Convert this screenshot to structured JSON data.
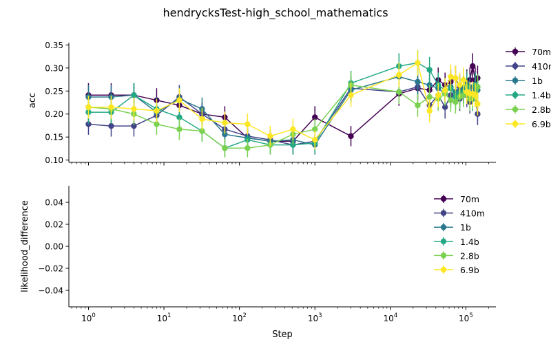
{
  "chart_data": {
    "type": "line",
    "title": "hendrycksTest-high_school_mathematics",
    "xlabel": "Step",
    "xscale": "log",
    "xlim": [
      0.55,
      250000
    ],
    "xticks": [
      {
        "value": 1,
        "base": "10",
        "exp": "0"
      },
      {
        "value": 10,
        "base": "10",
        "exp": "1"
      },
      {
        "value": 100,
        "base": "10",
        "exp": "2"
      },
      {
        "value": 1000,
        "base": "10",
        "exp": "3"
      },
      {
        "value": 10000,
        "base": "10",
        "exp": "4"
      },
      {
        "value": 100000,
        "base": "10",
        "exp": "5"
      }
    ],
    "x": [
      1,
      2,
      4,
      8,
      16,
      32,
      64,
      128,
      256,
      512,
      1000,
      3000,
      13000,
      23000,
      33000,
      43000,
      53000,
      63000,
      73000,
      83000,
      93000,
      103000,
      113000,
      123000,
      133000,
      143000
    ],
    "series_colors": {
      "70m": "#440154",
      "410m": "#414487",
      "1b": "#2a788e",
      "1.4b": "#22a884",
      "2.8b": "#7ad151",
      "6.9b": "#fde725"
    },
    "panels": [
      {
        "ylabel": "acc",
        "ylim": [
          0.095,
          0.355
        ],
        "yticks": [
          "0.10",
          "0.15",
          "0.20",
          "0.25",
          "0.30",
          "0.35"
        ],
        "legend_position": "outside-right",
        "series": [
          {
            "name": "70m",
            "values": [
              0.241,
              0.241,
              0.241,
              0.23,
              0.219,
              0.2,
              0.193,
              0.148,
              0.141,
              0.141,
              0.193,
              0.152,
              0.244,
              0.256,
              0.252,
              0.274,
              0.263,
              0.27,
              0.278,
              0.259,
              0.256,
              0.27,
              0.274,
              0.304,
              0.274,
              0.278
            ],
            "err": [
              0.026,
              0.026,
              0.026,
              0.026,
              0.025,
              0.024,
              0.024,
              0.022,
              0.021,
              0.021,
              0.024,
              0.022,
              0.026,
              0.027,
              0.026,
              0.027,
              0.027,
              0.027,
              0.027,
              0.027,
              0.027,
              0.027,
              0.027,
              0.028,
              0.027,
              0.027
            ]
          },
          {
            "name": "410m",
            "values": [
              0.178,
              0.174,
              0.174,
              0.197,
              0.237,
              0.2,
              0.167,
              0.152,
              0.144,
              0.133,
              0.141,
              0.256,
              0.248,
              0.259,
              0.219,
              0.241,
              0.215,
              0.241,
              0.248,
              0.233,
              0.252,
              0.241,
              0.226,
              0.233,
              0.248,
              0.2
            ],
            "err": [
              0.023,
              0.023,
              0.023,
              0.024,
              0.026,
              0.024,
              0.023,
              0.022,
              0.021,
              0.021,
              0.021,
              0.027,
              0.026,
              0.027,
              0.025,
              0.026,
              0.025,
              0.026,
              0.026,
              0.026,
              0.026,
              0.026,
              0.025,
              0.026,
              0.026,
              0.024
            ]
          },
          {
            "name": "1b",
            "values": [
              0.237,
              0.237,
              0.241,
              0.204,
              0.233,
              0.211,
              0.156,
              0.148,
              0.141,
              0.144,
              0.133,
              0.252,
              0.281,
              0.27,
              0.263,
              0.256,
              0.244,
              0.259,
              0.248,
              0.252,
              0.256,
              0.267,
              0.259,
              0.244,
              0.256,
              0.252
            ],
            "err": [
              0.026,
              0.026,
              0.026,
              0.025,
              0.026,
              0.025,
              0.022,
              0.022,
              0.021,
              0.021,
              0.021,
              0.027,
              0.027,
              0.027,
              0.027,
              0.027,
              0.026,
              0.027,
              0.026,
              0.026,
              0.027,
              0.027,
              0.027,
              0.026,
              0.027,
              0.026
            ]
          },
          {
            "name": "1.4b",
            "values": [
              0.204,
              0.204,
              0.241,
              0.211,
              0.193,
              0.163,
              0.126,
              0.144,
              0.133,
              0.133,
              0.137,
              0.267,
              0.304,
              0.311,
              0.296,
              0.263,
              0.252,
              0.256,
              0.237,
              0.244,
              0.248,
              0.259,
              0.241,
              0.233,
              0.263,
              0.259
            ],
            "err": [
              0.025,
              0.025,
              0.026,
              0.025,
              0.024,
              0.023,
              0.02,
              0.021,
              0.021,
              0.021,
              0.021,
              0.027,
              0.028,
              0.028,
              0.028,
              0.027,
              0.026,
              0.027,
              0.026,
              0.026,
              0.026,
              0.027,
              0.026,
              0.026,
              0.027,
              0.027
            ]
          },
          {
            "name": "2.8b",
            "values": [
              0.215,
              0.211,
              0.2,
              0.178,
              0.167,
              0.163,
              0.126,
              0.126,
              0.133,
              0.156,
              0.167,
              0.263,
              0.248,
              0.219,
              0.237,
              0.233,
              0.244,
              0.23,
              0.226,
              0.237,
              0.241,
              0.248,
              0.233,
              0.237,
              0.241,
              0.259
            ],
            "err": [
              0.025,
              0.025,
              0.024,
              0.023,
              0.023,
              0.023,
              0.02,
              0.02,
              0.021,
              0.022,
              0.023,
              0.027,
              0.026,
              0.025,
              0.026,
              0.026,
              0.026,
              0.026,
              0.025,
              0.026,
              0.026,
              0.026,
              0.026,
              0.026,
              0.026,
              0.027
            ]
          },
          {
            "name": "6.9b",
            "values": [
              0.215,
              0.215,
              0.211,
              0.207,
              0.23,
              0.189,
              0.181,
              0.178,
              0.152,
              0.167,
              0.144,
              0.241,
              0.285,
              0.311,
              0.207,
              0.241,
              0.252,
              0.281,
              0.278,
              0.263,
              0.274,
              0.248,
              0.244,
              0.244,
              0.241,
              0.222
            ],
            "err": [
              0.025,
              0.025,
              0.025,
              0.025,
              0.026,
              0.024,
              0.024,
              0.023,
              0.022,
              0.023,
              0.021,
              0.026,
              0.027,
              0.028,
              0.025,
              0.026,
              0.026,
              0.027,
              0.027,
              0.027,
              0.027,
              0.026,
              0.026,
              0.026,
              0.026,
              0.025
            ]
          }
        ]
      },
      {
        "ylabel": "likelihood_difference",
        "ylim": [
          -0.055,
          0.055
        ],
        "yticks": [
          "0.04",
          "0.02",
          "0.00",
          "−0.02",
          "−0.04"
        ],
        "ytick_values": [
          0.04,
          0.02,
          0.0,
          -0.02,
          -0.04
        ],
        "legend_position": "inside-upper-right",
        "series_names": [
          "70m",
          "410m",
          "1b",
          "1.4b",
          "2.8b",
          "6.9b"
        ]
      }
    ]
  }
}
